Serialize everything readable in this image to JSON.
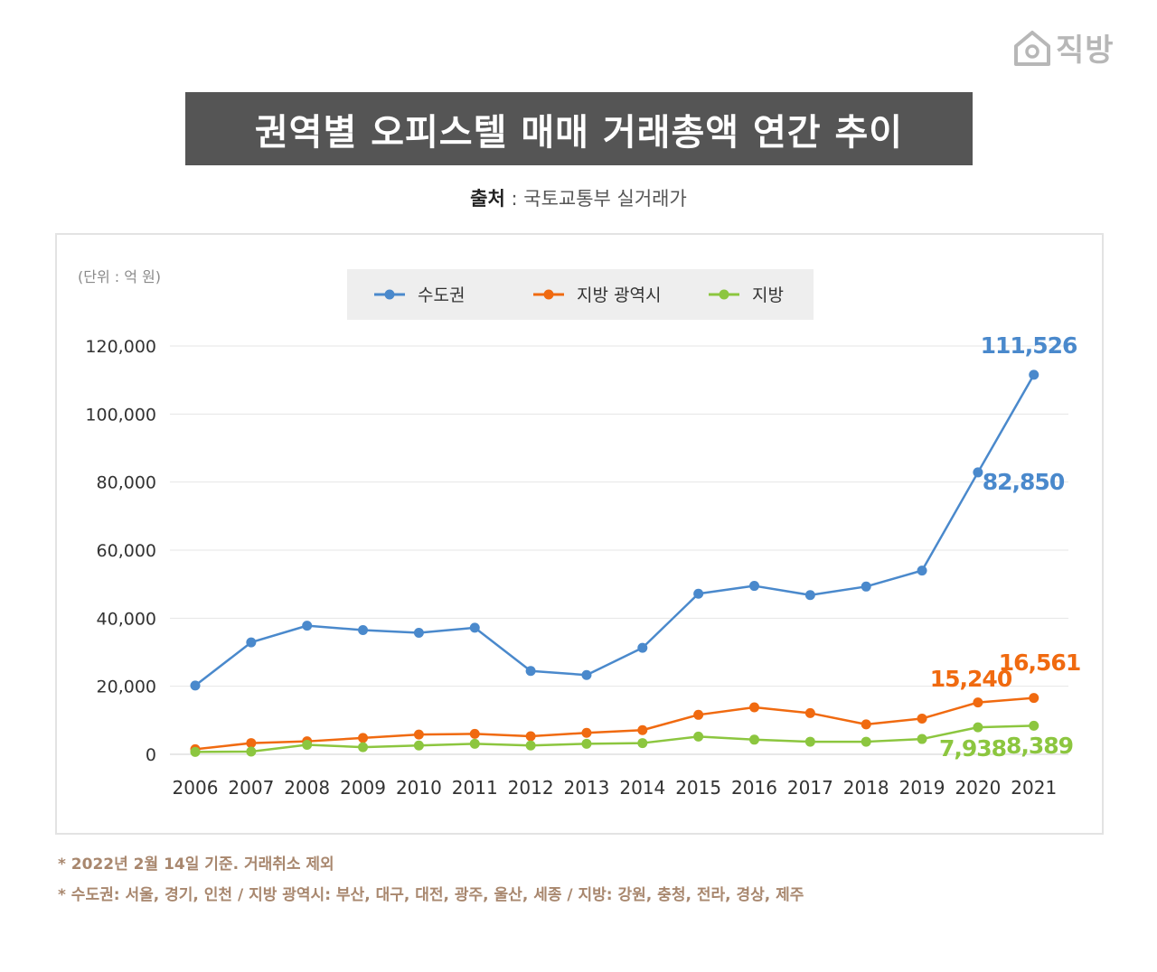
{
  "logo": {
    "text": "직방",
    "icon": "house-icon"
  },
  "title": "권역별 오피스텔 매매 거래총액 연간 추이",
  "source": {
    "label": "출처",
    "separator": " : ",
    "text": "국토교통부 실거래가"
  },
  "chart_data": {
    "type": "line",
    "unit_label": "(단위 : 억 원)",
    "categories": [
      "2006",
      "2007",
      "2008",
      "2009",
      "2010",
      "2011",
      "2012",
      "2013",
      "2014",
      "2015",
      "2016",
      "2017",
      "2018",
      "2019",
      "2020",
      "2021"
    ],
    "ylim": [
      0,
      120000
    ],
    "yticks": [
      0,
      20000,
      40000,
      60000,
      80000,
      100000,
      120000
    ],
    "ytick_labels": [
      "0",
      "20,000",
      "40,000",
      "60,000",
      "80,000",
      "100,000",
      "120,000"
    ],
    "grid": true,
    "legend_position": "top-center",
    "series": [
      {
        "name": "수도권",
        "color": "#4a89cc",
        "values": [
          20200,
          32900,
          37800,
          36500,
          35700,
          37200,
          24500,
          23300,
          31300,
          47200,
          49500,
          46800,
          49300,
          54000,
          82850,
          111526
        ],
        "labels": [
          {
            "index": 14,
            "text": "82,850"
          },
          {
            "index": 15,
            "text": "111,526"
          }
        ]
      },
      {
        "name": "지방 광역시",
        "color": "#f06a10",
        "values": [
          1500,
          3300,
          3800,
          4800,
          5800,
          6000,
          5300,
          6300,
          7100,
          11600,
          13800,
          12100,
          8800,
          10500,
          15240,
          16561
        ],
        "labels": [
          {
            "index": 14,
            "text": "15,240"
          },
          {
            "index": 15,
            "text": "16,561"
          }
        ]
      },
      {
        "name": "지방",
        "color": "#8cc63f",
        "values": [
          700,
          800,
          2800,
          2100,
          2600,
          3100,
          2600,
          3100,
          3300,
          5200,
          4300,
          3700,
          3700,
          4500,
          7938,
          8389
        ],
        "labels": [
          {
            "index": 14,
            "text": "7,938"
          },
          {
            "index": 15,
            "text": "8,389"
          }
        ]
      }
    ]
  },
  "notes": [
    "* 2022년 2월 14일 기준. 거래취소 제외",
    "* 수도권: 서울, 경기, 인천 / 지방 광역시: 부산, 대구, 대전, 광주, 울산, 세종 / 지방: 강원, 충청, 전라, 경상, 제주"
  ]
}
